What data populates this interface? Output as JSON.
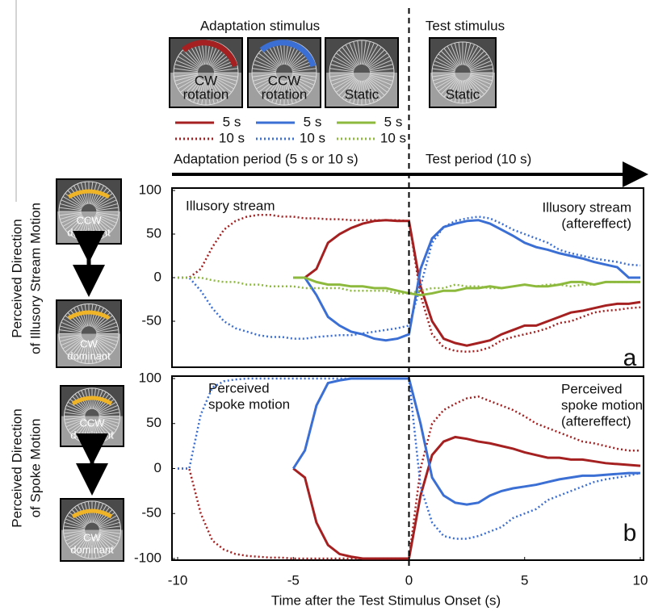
{
  "stimuli": {
    "adaptation_title": "Adaptation stimulus",
    "test_title": "Test stimulus",
    "thumbnails": [
      [
        "CW",
        "rotation"
      ],
      [
        "CCW",
        "rotation"
      ],
      [
        "Static"
      ],
      [
        "Static"
      ]
    ]
  },
  "periods": {
    "adaptation": "Adaptation period (5 s or 10 s)",
    "test": "Test period (10 s)"
  },
  "chart_data": [
    {
      "type": "line",
      "panel_label": "a",
      "y_label": [
        "Perceived  Direction",
        "of Illusory Stream Motion"
      ],
      "icons": [
        [
          "CCW",
          "dominant"
        ],
        [
          "CW",
          "dominant"
        ]
      ],
      "annotations": [
        [
          "Illusory stream"
        ],
        [
          "Illusory stream",
          "(aftereffect)"
        ]
      ],
      "xlim": [
        -10,
        10
      ],
      "ylim": [
        -100,
        100
      ],
      "yticks": [
        -50,
        0,
        50,
        100
      ],
      "x": [
        -10,
        -9.5,
        -9,
        -8.5,
        -8,
        -7.5,
        -7,
        -6.5,
        -6,
        -5.5,
        -5,
        -4.5,
        -4,
        -3.5,
        -3,
        -2.5,
        -2,
        -1.5,
        -1,
        -0.5,
        0,
        0.5,
        1,
        1.5,
        2,
        2.5,
        3,
        3.5,
        4,
        4.5,
        5,
        5.5,
        6,
        6.5,
        7,
        7.5,
        8,
        8.5,
        9,
        9.5,
        10
      ],
      "series": [
        {
          "name": "5 s",
          "color": "#a52020",
          "dash": "solid",
          "values": [
            null,
            null,
            null,
            null,
            null,
            null,
            null,
            null,
            null,
            null,
            0,
            0,
            10,
            40,
            50,
            57,
            62,
            65,
            66,
            65,
            65,
            -10,
            -50,
            -70,
            -75,
            -78,
            -75,
            -72,
            -65,
            -60,
            -55,
            -55,
            -50,
            -45,
            -40,
            -38,
            -35,
            -32,
            -30,
            -30,
            -28
          ]
        },
        {
          "name": "10 s",
          "color": "#a52020",
          "dash": "dotted",
          "values": [
            0,
            0,
            10,
            35,
            55,
            65,
            70,
            72,
            72,
            70,
            70,
            68,
            68,
            67,
            67,
            66,
            66,
            66,
            66,
            66,
            65,
            -20,
            -65,
            -80,
            -84,
            -85,
            -84,
            -80,
            -72,
            -68,
            -65,
            -62,
            -58,
            -52,
            -50,
            -45,
            -40,
            -38,
            -37,
            -35,
            -34
          ]
        },
        {
          "name": "5 s",
          "color": "#3b6fd4",
          "dash": "solid",
          "values": [
            null,
            null,
            null,
            null,
            null,
            null,
            null,
            null,
            null,
            null,
            0,
            0,
            -20,
            -45,
            -55,
            -62,
            -65,
            -70,
            -72,
            -70,
            -65,
            10,
            45,
            58,
            62,
            65,
            66,
            62,
            55,
            48,
            40,
            35,
            32,
            28,
            25,
            22,
            18,
            15,
            12,
            0,
            0
          ]
        },
        {
          "name": "10 s",
          "color": "#3b6fd4",
          "dash": "dotted",
          "values": [
            0,
            0,
            -15,
            -35,
            -50,
            -58,
            -62,
            -66,
            -68,
            -68,
            -70,
            -70,
            -68,
            -67,
            -66,
            -66,
            -64,
            -62,
            -60,
            -58,
            -55,
            -10,
            40,
            58,
            65,
            68,
            70,
            68,
            62,
            55,
            50,
            45,
            40,
            32,
            28,
            25,
            22,
            20,
            18,
            15,
            14
          ]
        },
        {
          "name": "5 s",
          "color": "#8dba3c",
          "dash": "solid",
          "values": [
            null,
            null,
            null,
            null,
            null,
            null,
            null,
            null,
            null,
            null,
            0,
            0,
            -5,
            -8,
            -8,
            -10,
            -10,
            -12,
            -12,
            -15,
            -18,
            -20,
            -18,
            -15,
            -15,
            -12,
            -12,
            -10,
            -12,
            -10,
            -8,
            -10,
            -10,
            -8,
            -5,
            -5,
            -8,
            -5,
            -5,
            -5,
            -5
          ]
        },
        {
          "name": "10 s",
          "color": "#8dba3c",
          "dash": "dotted",
          "values": [
            0,
            0,
            0,
            -3,
            -5,
            -5,
            -8,
            -8,
            -10,
            -10,
            -10,
            -12,
            -12,
            -12,
            -12,
            -15,
            -15,
            -15,
            -15,
            -18,
            -18,
            -15,
            -12,
            -12,
            -8,
            -10,
            -10,
            -12,
            -12,
            -10,
            -8,
            -10,
            -8,
            -8,
            -10,
            -8,
            -8,
            -5,
            -5,
            -5,
            -5
          ]
        }
      ]
    },
    {
      "type": "line",
      "panel_label": "b",
      "y_label": [
        "Perceived  Direction",
        "of Spoke Motion"
      ],
      "icons": [
        [
          "CCW",
          "dominant"
        ],
        [
          "CW",
          "dominant"
        ]
      ],
      "annotations": [
        [
          "Perceived",
          "spoke motion"
        ],
        [
          "Perceived",
          "spoke motion",
          "(aftereffect)"
        ]
      ],
      "x_label": "Time after the Test Stimulus Onset (s)",
      "xlim": [
        -10,
        10
      ],
      "xticks": [
        -10,
        -5,
        0,
        5,
        10
      ],
      "ylim": [
        -100,
        100
      ],
      "yticks": [
        -100,
        -50,
        0,
        50,
        100
      ],
      "x": [
        -10,
        -9.5,
        -9,
        -8.5,
        -8,
        -7.5,
        -7,
        -6.5,
        -6,
        -5.5,
        -5,
        -4.5,
        -4,
        -3.5,
        -3,
        -2.5,
        -2,
        -1.5,
        -1,
        -0.5,
        0,
        0.5,
        1,
        1.5,
        2,
        2.5,
        3,
        3.5,
        4,
        4.5,
        5,
        5.5,
        6,
        6.5,
        7,
        7.5,
        8,
        8.5,
        9,
        9.5,
        10
      ],
      "series": [
        {
          "color": "#a52020",
          "dash": "solid",
          "values": [
            null,
            null,
            null,
            null,
            null,
            null,
            null,
            null,
            null,
            null,
            0,
            -10,
            -60,
            -85,
            -95,
            -98,
            -100,
            -100,
            -100,
            -100,
            -100,
            -30,
            15,
            30,
            35,
            33,
            30,
            28,
            25,
            22,
            18,
            15,
            12,
            12,
            10,
            10,
            8,
            6,
            5,
            4,
            3
          ]
        },
        {
          "color": "#a52020",
          "dash": "dotted",
          "values": [
            0,
            0,
            -50,
            -80,
            -90,
            -95,
            -97,
            -98,
            -99,
            -99,
            -100,
            -100,
            -100,
            -100,
            -100,
            -100,
            -100,
            -100,
            -100,
            -100,
            -100,
            0,
            50,
            65,
            72,
            78,
            80,
            75,
            70,
            65,
            58,
            50,
            45,
            40,
            35,
            30,
            28,
            25,
            22,
            20,
            20
          ]
        },
        {
          "color": "#3b6fd4",
          "dash": "solid",
          "values": [
            null,
            null,
            null,
            null,
            null,
            null,
            null,
            null,
            null,
            null,
            0,
            20,
            70,
            95,
            98,
            100,
            100,
            100,
            100,
            100,
            100,
            50,
            -10,
            -30,
            -38,
            -40,
            -38,
            -30,
            -25,
            -22,
            -20,
            -18,
            -15,
            -12,
            -10,
            -8,
            -8,
            -7,
            -6,
            -5,
            -5
          ]
        },
        {
          "color": "#3b6fd4",
          "dash": "dotted",
          "values": [
            0,
            0,
            60,
            90,
            97,
            99,
            100,
            100,
            100,
            100,
            100,
            100,
            100,
            100,
            100,
            100,
            100,
            100,
            100,
            100,
            100,
            -20,
            -60,
            -75,
            -78,
            -78,
            -75,
            -70,
            -65,
            -55,
            -50,
            -45,
            -35,
            -30,
            -25,
            -20,
            -15,
            -12,
            -10,
            -8,
            -5
          ]
        }
      ]
    }
  ]
}
